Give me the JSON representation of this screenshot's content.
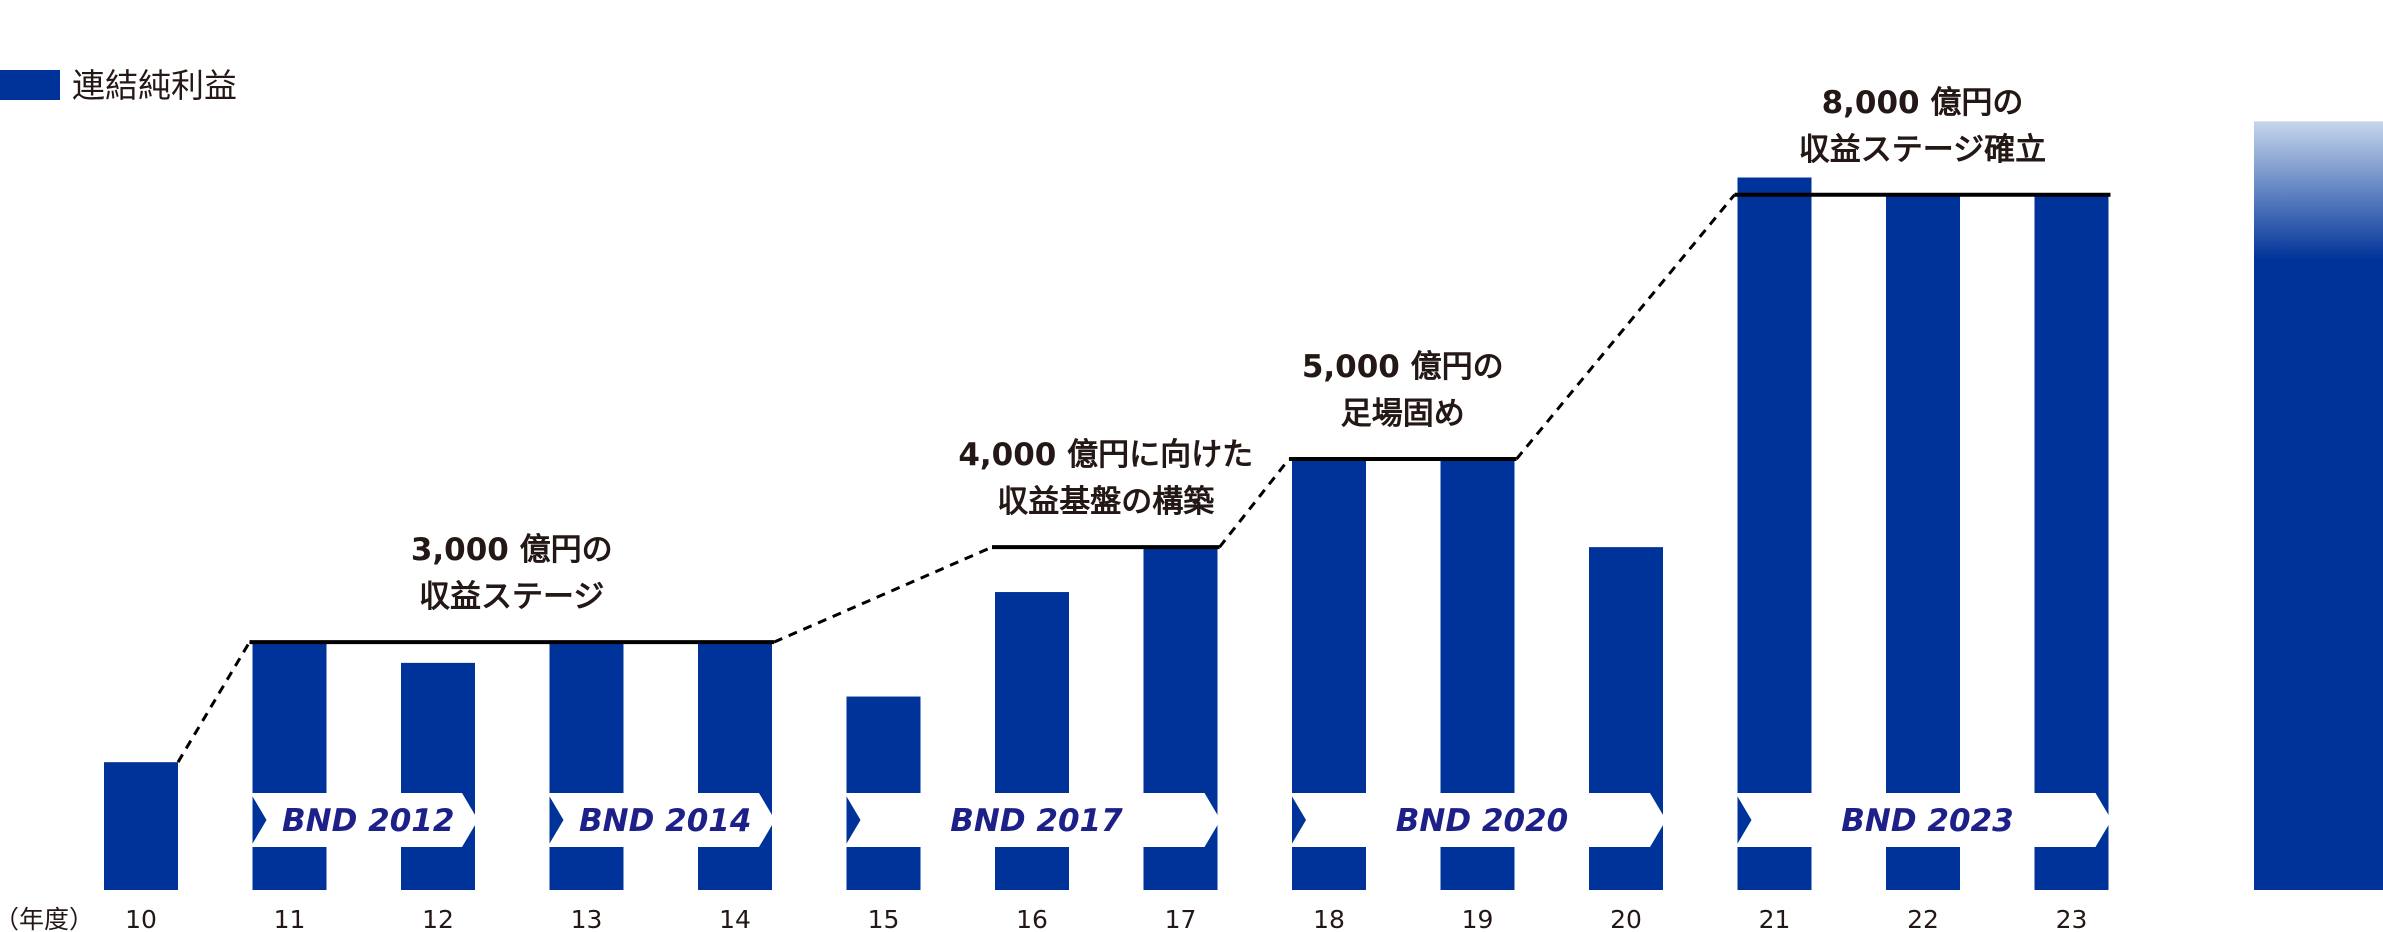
{
  "chart_data": {
    "type": "bar",
    "legend": {
      "label": "連結純利益",
      "color": "#003399"
    },
    "x_unit_label": "（年度）",
    "categories": [
      "10",
      "11",
      "12",
      "13",
      "14",
      "15",
      "16",
      "17",
      "18",
      "19",
      "20",
      "21",
      "22",
      "23"
    ],
    "values": [
      1480,
      2870,
      2630,
      2880,
      2870,
      2240,
      3450,
      3970,
      4990,
      4990,
      3970,
      8250,
      8050,
      8040
    ],
    "ylim": [
      0,
      8800
    ],
    "future_bar": {
      "value": 8900,
      "color_top": "#c6d6ec",
      "color_bottom": "#003399"
    },
    "stages": [
      {
        "line1": "3,000 億円の",
        "line2": "収益ステージ",
        "level": 2870,
        "from": 1,
        "to": 4
      },
      {
        "line1": "4,000 億円に向けた",
        "line2": "収益基盤の構築",
        "level": 3970,
        "from": 6,
        "to": 7
      },
      {
        "line1": "5,000 億円の",
        "line2": "足場固め",
        "level": 4990,
        "from": 8,
        "to": 9
      },
      {
        "line1": "8,000 億円の",
        "line2": "収益ステージ確立",
        "level": 8050,
        "from": 11,
        "to": 13
      }
    ],
    "plans": [
      {
        "label": "BND 2012",
        "from": 1,
        "to": 2
      },
      {
        "label": "BND 2014",
        "from": 3,
        "to": 4
      },
      {
        "label": "BND 2017",
        "from": 5,
        "to": 7
      },
      {
        "label": "BND 2020",
        "from": 8,
        "to": 10
      },
      {
        "label": "BND 2023",
        "from": 11,
        "to": 13
      }
    ],
    "colors": {
      "bar": "#003399",
      "line": "#000000",
      "text": "#231815",
      "plan_text": "#1d2088"
    }
  }
}
